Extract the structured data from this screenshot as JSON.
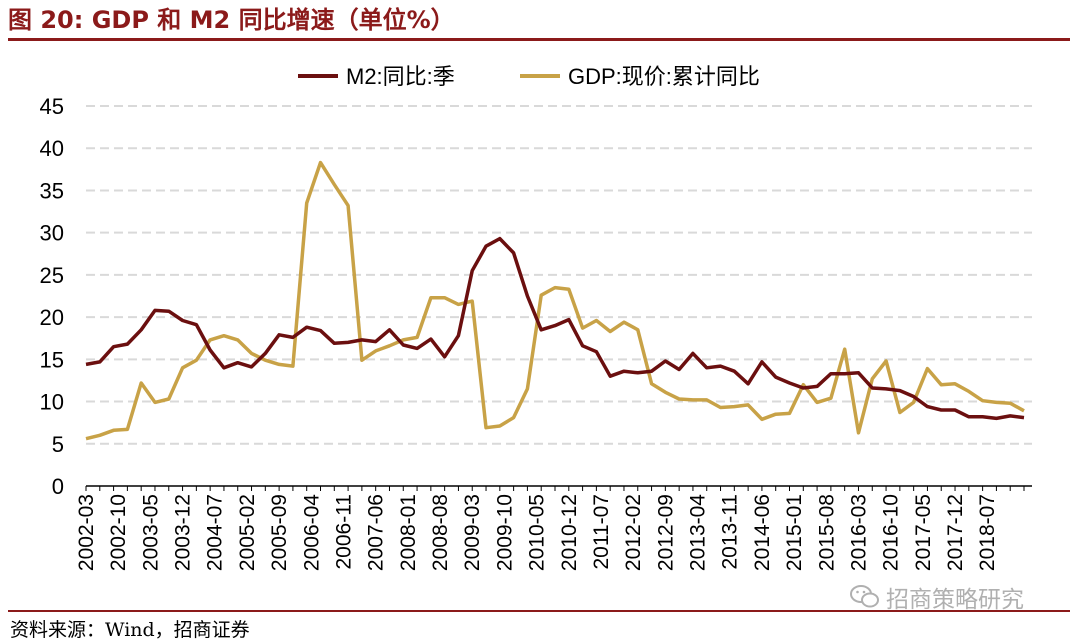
{
  "header": {
    "title": "图 20: GDP 和 M2 同比增速（单位%）"
  },
  "footer": {
    "source": "资料来源：Wind，招商证券",
    "watermark": "招商策略研究",
    "watermark_icon": "wechat-icon"
  },
  "colors": {
    "m2": "#6b0f0f",
    "gdp": "#c8a247",
    "accent": "#8b1a1a",
    "grid": "#d9d9d9"
  },
  "chart_data": {
    "type": "line",
    "title": "",
    "xlabel": "",
    "ylabel": "",
    "ylim": [
      0,
      45
    ],
    "yticks": [
      0,
      5,
      10,
      15,
      20,
      25,
      30,
      35,
      40,
      45
    ],
    "grid": "horizontal-dashed",
    "legend_position": "top",
    "x_start": "2002-03",
    "x_step_months": 3,
    "tick_labels": [
      "2002-03",
      "2002-10",
      "2003-05",
      "2003-12",
      "2004-07",
      "2005-02",
      "2005-09",
      "2006-04",
      "2006-11",
      "2007-06",
      "2008-01",
      "2008-08",
      "2009-03",
      "2009-10",
      "2010-05",
      "2010-12",
      "2011-07",
      "2012-02",
      "2012-09",
      "2013-04",
      "2013-11",
      "2014-06",
      "2015-01",
      "2015-08",
      "2016-03",
      "2016-10",
      "2017-05",
      "2017-12",
      "2018-07"
    ],
    "series": [
      {
        "name": "M2:同比:季",
        "values": [
          14.4,
          14.7,
          16.5,
          16.8,
          18.5,
          20.8,
          20.7,
          19.6,
          19.1,
          16.1,
          14.0,
          14.6,
          14.1,
          15.7,
          17.9,
          17.6,
          18.8,
          18.4,
          16.9,
          17.0,
          17.3,
          17.1,
          18.5,
          16.7,
          16.3,
          17.4,
          15.3,
          17.8,
          25.5,
          28.4,
          29.3,
          27.6,
          22.5,
          18.5,
          19.0,
          19.7,
          16.6,
          15.9,
          13.0,
          13.6,
          13.4,
          13.6,
          14.8,
          13.8,
          15.7,
          14.0,
          14.2,
          13.6,
          12.1,
          14.7,
          12.9,
          12.2,
          11.6,
          11.8,
          13.3,
          13.3,
          13.4,
          11.6,
          11.5,
          11.3,
          10.6,
          9.4,
          9.0,
          9.0,
          8.2,
          8.2,
          8.0,
          8.3,
          8.1
        ]
      },
      {
        "name": "GDP:现价:累计同比",
        "values": [
          5.6,
          6.0,
          6.6,
          6.7,
          12.2,
          9.9,
          10.3,
          14.0,
          14.9,
          17.3,
          17.8,
          17.3,
          15.7,
          14.9,
          14.4,
          14.2,
          33.5,
          38.3,
          35.7,
          33.2,
          14.9,
          16.0,
          16.6,
          17.3,
          17.6,
          22.3,
          22.3,
          21.5,
          21.9,
          6.9,
          7.1,
          8.1,
          11.5,
          22.6,
          23.5,
          23.3,
          18.7,
          19.6,
          18.3,
          19.4,
          18.5,
          12.1,
          11.1,
          10.3,
          10.2,
          10.2,
          9.3,
          9.4,
          9.6,
          7.9,
          8.5,
          8.6,
          12.0,
          9.9,
          10.4,
          16.2,
          6.3,
          12.7,
          14.8,
          8.7,
          9.9,
          13.9,
          12.0,
          12.1,
          11.2,
          10.1,
          9.9,
          9.8,
          8.9
        ]
      }
    ]
  }
}
